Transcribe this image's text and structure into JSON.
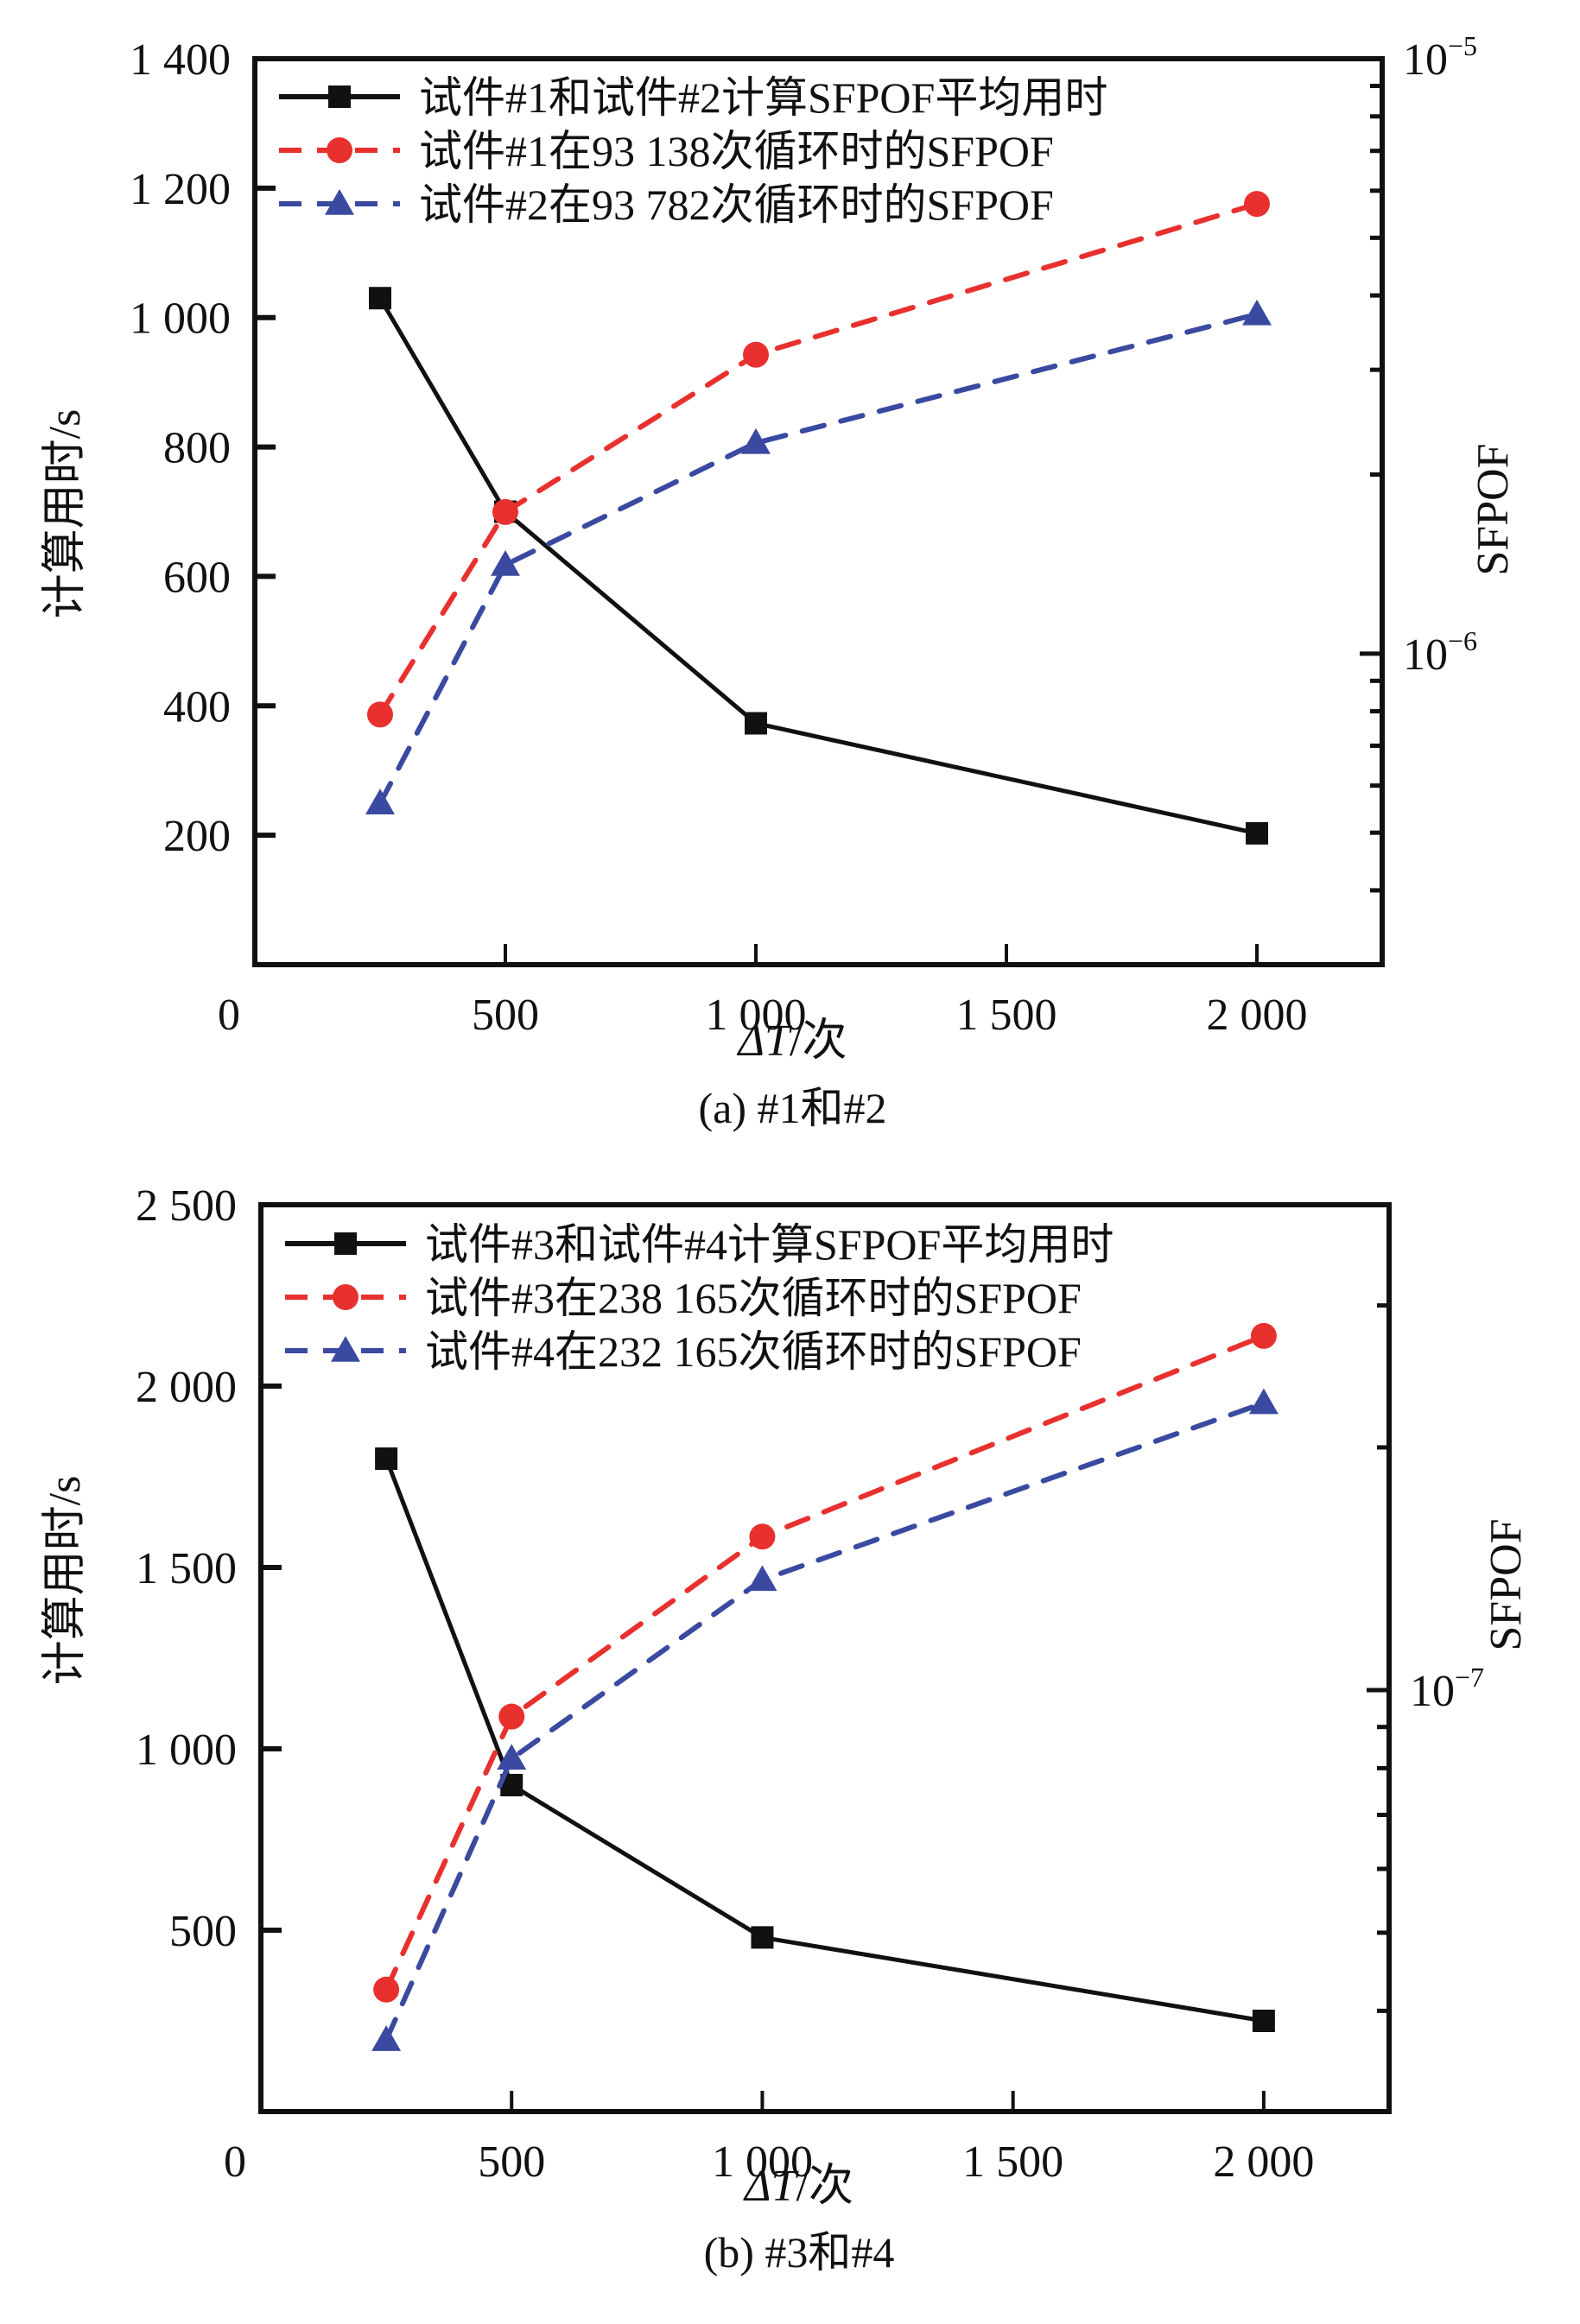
{
  "chart_data": [
    {
      "type": "line",
      "panel": "a",
      "caption": "(a) #1和#2",
      "title": "",
      "xlabel_prefix": "ΔT",
      "xlabel_suffix": "/次",
      "ylabel": "计算用时/s",
      "y2label": "SFPOF",
      "xlim": [
        0,
        2250
      ],
      "x_ticks": [
        0,
        500,
        1000,
        1500,
        2000
      ],
      "x_tick_labels": [
        "0",
        "500",
        "1 000",
        "1 500",
        "2 000"
      ],
      "ylim": [
        0,
        1400
      ],
      "y_ticks": [
        200,
        400,
        600,
        800,
        1000,
        1200,
        1400
      ],
      "y_tick_labels": [
        "200",
        "400",
        "600",
        "800",
        "1 000",
        "1 200",
        "1 400"
      ],
      "y2_scale": "log",
      "y2lim": [
        3e-07,
        1e-05
      ],
      "y2_major_ticks": [
        1e-06,
        1e-05
      ],
      "y2_major_labels": [
        {
          "base": "10",
          "exp": "−6"
        },
        {
          "base": "10",
          "exp": "−5"
        }
      ],
      "y2_minor_ticks": [
        3e-07,
        4e-07,
        5e-07,
        6e-07,
        7e-07,
        8e-07,
        9e-07,
        2e-06,
        3e-06,
        4e-06,
        5e-06,
        6e-06,
        7e-06,
        8e-06,
        9e-06
      ],
      "grid": false,
      "legend_position": "top-left",
      "x": [
        250,
        500,
        1000,
        2000
      ],
      "series": [
        {
          "name": "试件#1和试件#2计算SFPOF平均用时",
          "axis": "left",
          "color": "#111111",
          "marker": "square",
          "dashed": false,
          "values": [
            1030,
            700,
            373,
            203
          ]
        },
        {
          "name": "试件#1在93 138次循环时的SFPOF",
          "axis": "right",
          "color": "#e8312f",
          "marker": "circle",
          "dashed": true,
          "values": [
            7.9e-07,
            1.73e-06,
            3.18e-06,
            5.7e-06
          ]
        },
        {
          "name": "试件#2在93 782次循环时的SFPOF",
          "axis": "right",
          "color": "#3a4aa0",
          "marker": "triangle",
          "dashed": true,
          "values": [
            5.6e-07,
            1.41e-06,
            2.26e-06,
            3.72e-06
          ]
        }
      ]
    },
    {
      "type": "line",
      "panel": "b",
      "caption": "(b) #3和#4",
      "title": "",
      "xlabel_prefix": "ΔT",
      "xlabel_suffix": "/次",
      "ylabel": "计算用时/s",
      "y2label": "SFPOF",
      "xlim": [
        0,
        2250
      ],
      "x_ticks": [
        0,
        500,
        1000,
        1500,
        2000
      ],
      "x_tick_labels": [
        "0",
        "500",
        "1 000",
        "1 500",
        "2 000"
      ],
      "ylim": [
        0,
        2500
      ],
      "y_ticks": [
        500,
        1000,
        1500,
        2000,
        2500
      ],
      "y_tick_labels": [
        "500",
        "1 000",
        "1 500",
        "2 000",
        "2 500"
      ],
      "y2_scale": "log",
      "y2lim": [
        3e-08,
        4e-07
      ],
      "y2_major_ticks": [
        1e-07
      ],
      "y2_major_labels": [
        {
          "base": "10",
          "exp": "−7"
        }
      ],
      "y2_minor_ticks": [
        4e-08,
        5e-08,
        6e-08,
        7e-08,
        8e-08,
        9e-08,
        2e-07,
        3e-07
      ],
      "grid": false,
      "legend_position": "top-left",
      "x": [
        250,
        500,
        1000,
        2000
      ],
      "series": [
        {
          "name": "试件#3和试件#4计算SFPOF平均用时",
          "axis": "left",
          "color": "#111111",
          "marker": "square",
          "dashed": false,
          "values": [
            1800,
            900,
            480,
            250
          ]
        },
        {
          "name": "试件#3在238 165次循环时的SFPOF",
          "axis": "right",
          "color": "#e8312f",
          "marker": "circle",
          "dashed": true,
          "values": [
            4.25e-08,
            9.27e-08,
            1.55e-07,
            2.75e-07
          ]
        },
        {
          "name": "试件#4在232 165次循环时的SFPOF",
          "axis": "right",
          "color": "#3a4aa0",
          "marker": "triangle",
          "dashed": true,
          "values": [
            3.68e-08,
            8.22e-08,
            1.37e-07,
            2.27e-07
          ]
        }
      ]
    }
  ]
}
